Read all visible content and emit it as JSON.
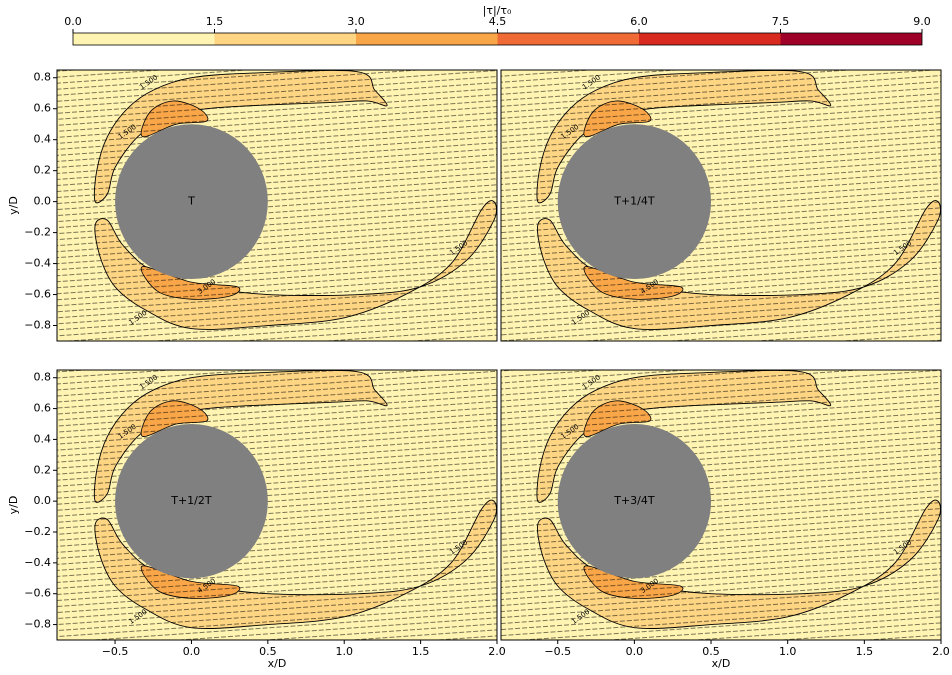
{
  "colorbar": {
    "label": "|τ|/τ₀",
    "colors": [
      "#fff4b2",
      "#fdd583",
      "#f9a648",
      "#f06a35",
      "#d92a1f",
      "#9e0027"
    ],
    "ticks": [
      {
        "value": 0,
        "label": "0.0"
      },
      1.5,
      {
        "value": 3,
        "label": "3.0"
      },
      4.5,
      {
        "value": 6,
        "label": "6.0"
      },
      7.5,
      {
        "value": 9,
        "label": "9.0"
      }
    ]
  },
  "chart_data": [
    {
      "type": "contour",
      "label": "T",
      "xlim": [
        -0.88,
        2.0
      ],
      "ylim": [
        -0.9,
        0.85
      ],
      "yticks": [
        0.8,
        0.6,
        0.4,
        0.2,
        {
          "value": 0,
          "label": "0.0"
        },
        {
          "value": -0.2,
          "label": "−0.2"
        },
        {
          "value": -0.4,
          "label": "−0.4"
        },
        {
          "value": -0.6,
          "label": "−0.6"
        },
        {
          "value": -0.8,
          "label": "−0.8"
        }
      ],
      "ylabel": "y/D",
      "contour_labels": [
        "1.500",
        "1.500",
        "1.500",
        "1.500",
        "3.000"
      ]
    },
    {
      "type": "contour",
      "label": "T+1/4T",
      "xlim": [
        -0.87,
        2.0
      ],
      "ylim": [
        -0.9,
        0.85
      ],
      "contour_labels": [
        "1.500",
        "1.500",
        "1.500",
        "1.500",
        "4.500"
      ]
    },
    {
      "type": "contour",
      "label": "T+1/2T",
      "xlim": [
        -0.88,
        2.0
      ],
      "ylim": [
        -0.9,
        0.85
      ],
      "xticks": [
        {
          "value": -0.5,
          "label": "−0.5"
        },
        {
          "value": 0,
          "label": "0.0"
        },
        0.5,
        {
          "value": 1,
          "label": "1.0"
        },
        1.5,
        {
          "value": 2,
          "label": "2.0"
        }
      ],
      "yticks": [
        0.8,
        0.6,
        0.4,
        0.2,
        {
          "value": 0,
          "label": "0.0"
        },
        {
          "value": -0.2,
          "label": "−0.2"
        },
        {
          "value": -0.4,
          "label": "−0.4"
        },
        {
          "value": -0.6,
          "label": "−0.6"
        },
        {
          "value": -0.8,
          "label": "−0.8"
        }
      ],
      "xlabel": "x/D",
      "ylabel": "y/D",
      "contour_labels": [
        "1.500",
        "1.500",
        "1.500",
        "1.500",
        "4.500"
      ]
    },
    {
      "type": "contour",
      "label": "T+3/4T",
      "xlim": [
        -0.87,
        2.0
      ],
      "ylim": [
        -0.9,
        0.85
      ],
      "xticks": [
        {
          "value": -0.5,
          "label": "−0.5"
        },
        {
          "value": 0,
          "label": "0.0"
        },
        0.5,
        {
          "value": 1,
          "label": "1.0"
        },
        1.5,
        {
          "value": 2,
          "label": "2.0"
        }
      ],
      "xlabel": "x/D",
      "contour_labels": [
        "1.500",
        "1.500",
        "1.500",
        "1.500",
        "3.000"
      ]
    }
  ]
}
